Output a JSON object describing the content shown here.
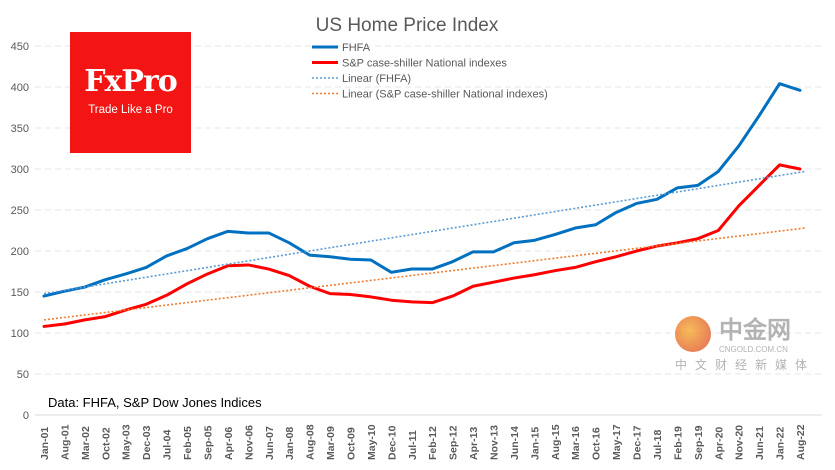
{
  "chart_data": {
    "type": "line",
    "title": "US Home Price Index",
    "xlabel": "",
    "ylabel": "",
    "ylim": [
      0,
      450
    ],
    "yticks": [
      0,
      50,
      100,
      150,
      200,
      250,
      300,
      350,
      400,
      450
    ],
    "grid": true,
    "legend_position": "top-center",
    "categories": [
      "Jan-01",
      "Aug-01",
      "Mar-02",
      "Oct-02",
      "May-03",
      "Dec-03",
      "Jul-04",
      "Feb-05",
      "Sep-05",
      "Apr-06",
      "Nov-06",
      "Jun-07",
      "Jan-08",
      "Aug-08",
      "Mar-09",
      "Oct-09",
      "May-10",
      "Dec-10",
      "Jul-11",
      "Feb-12",
      "Sep-12",
      "Apr-13",
      "Nov-13",
      "Jun-14",
      "Jan-15",
      "Aug-15",
      "Mar-16",
      "Oct-16",
      "May-17",
      "Dec-17",
      "Jul-18",
      "Feb-19",
      "Sep-19",
      "Apr-20",
      "Nov-20",
      "Jun-21",
      "Jan-22",
      "Aug-22"
    ],
    "series": [
      {
        "name": "FHFA",
        "color": "#0070c0",
        "style": "solid",
        "values": [
          145,
          151,
          156,
          165,
          172,
          180,
          194,
          203,
          215,
          224,
          222,
          222,
          210,
          195,
          193,
          190,
          189,
          174,
          178,
          178,
          187,
          199,
          199,
          210,
          213,
          220,
          228,
          232,
          247,
          258,
          263,
          277,
          280,
          297,
          328,
          365,
          404,
          396
        ]
      },
      {
        "name": "S&P case-shiller National indexes",
        "color": "#ff0000",
        "style": "solid",
        "values": [
          108,
          111,
          116,
          120,
          128,
          135,
          146,
          160,
          172,
          182,
          183,
          178,
          170,
          157,
          148,
          147,
          144,
          140,
          138,
          137,
          145,
          157,
          162,
          167,
          171,
          176,
          180,
          187,
          193,
          200,
          206,
          210,
          215,
          225,
          255,
          280,
          305,
          300
        ]
      },
      {
        "name": "Linear (FHFA)",
        "color": "#5b9bd5",
        "style": "dotted",
        "trend_of": "FHFA",
        "endpoints": [
          148,
          297
        ]
      },
      {
        "name": "Linear (S&P case-shiller National indexes)",
        "color": "#ed7d31",
        "style": "dotted",
        "trend_of": "S&P case-shiller National indexes",
        "endpoints": [
          116,
          228
        ]
      }
    ]
  },
  "logo": {
    "brand": "FxPro",
    "tagline": "Trade Like a Pro",
    "color": "#f31414"
  },
  "source_note": "Data: FHFA, S&P Dow Jones Indices",
  "watermark": {
    "name": "中金网",
    "domain": "CNGOLD.COM.CN",
    "subtitle": "中文财经新媒体"
  }
}
